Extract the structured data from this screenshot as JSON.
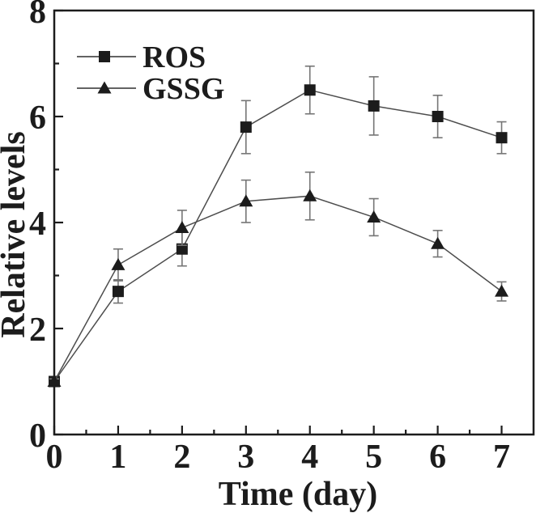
{
  "figure": {
    "background": "#ffffff"
  },
  "chart_data": {
    "type": "line",
    "xlabel": "Time (day)",
    "ylabel": "Relative levels",
    "x": [
      0,
      1,
      2,
      3,
      4,
      5,
      6,
      7
    ],
    "series": [
      {
        "name": "ROS",
        "marker": "square",
        "values": [
          1.0,
          2.7,
          3.5,
          5.8,
          6.5,
          6.2,
          6.0,
          5.6
        ],
        "errors": [
          0.05,
          0.22,
          0.32,
          0.5,
          0.45,
          0.55,
          0.4,
          0.3
        ]
      },
      {
        "name": "GSSG",
        "marker": "triangle",
        "values": [
          1.0,
          3.2,
          3.9,
          4.4,
          4.5,
          4.1,
          3.6,
          2.7
        ],
        "errors": [
          0.05,
          0.3,
          0.33,
          0.4,
          0.45,
          0.35,
          0.25,
          0.18
        ]
      }
    ],
    "xlim": [
      0,
      7.5
    ],
    "ylim": [
      0,
      8
    ],
    "xticks": [
      "0",
      "1",
      "2",
      "3",
      "4",
      "5",
      "6",
      "7"
    ],
    "xtick_values": [
      0,
      1,
      2,
      3,
      4,
      5,
      6,
      7
    ],
    "yticks": [
      "0",
      "2",
      "4",
      "6",
      "8"
    ],
    "ytick_values": [
      0,
      2,
      4,
      6,
      8
    ],
    "x_minor_ticks": [
      0.5,
      1.5,
      2.5,
      3.5,
      4.5,
      5.5,
      6.5
    ],
    "y_minor_ticks": [
      1,
      3,
      5,
      7
    ],
    "grid": false,
    "legend_position": "top-left",
    "colors": {
      "axis": "#1c1c1c",
      "text": "#1c1c1c",
      "marker": "#1c1c1c",
      "line": "#4d4d4d",
      "error": "#757575",
      "background": "#ffffff"
    }
  }
}
